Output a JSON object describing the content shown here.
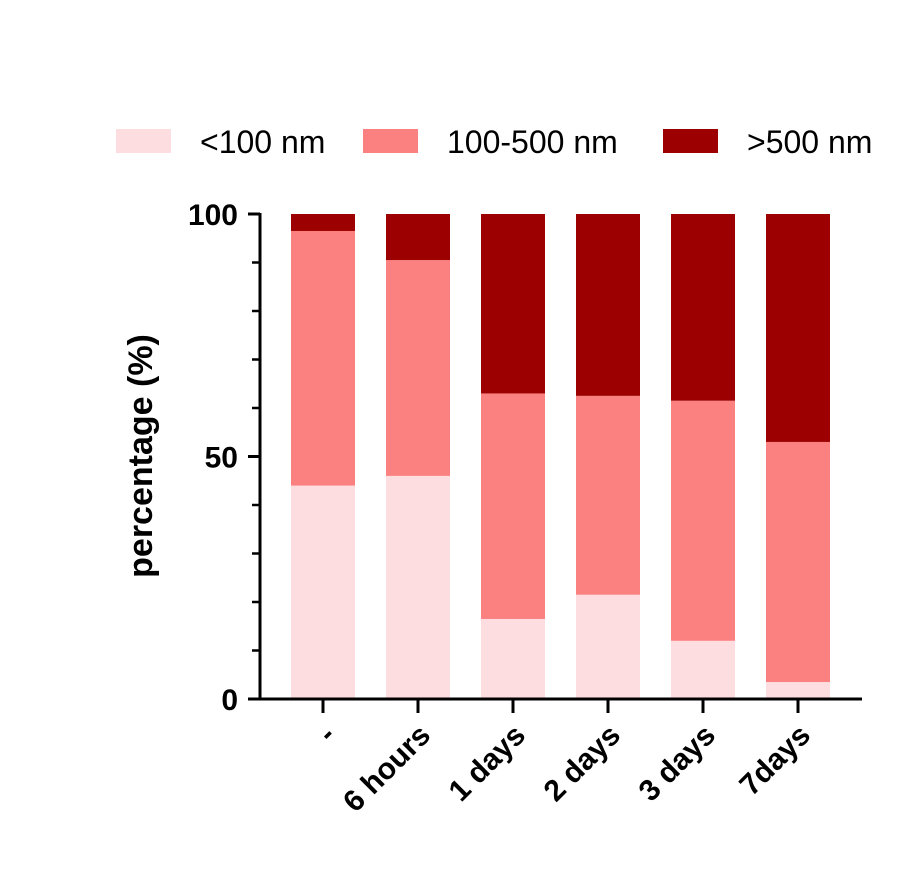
{
  "chart_data": {
    "type": "bar",
    "stacked": true,
    "categories": [
      "-",
      "6 hours",
      "1 days",
      "2 days",
      "3 days",
      "7days"
    ],
    "series": [
      {
        "name": "<100 nm",
        "color": "#fddddf",
        "values": [
          44,
          46,
          16.5,
          21.5,
          12,
          3.5
        ]
      },
      {
        "name": "100-500 nm",
        "color": "#fb8080",
        "values": [
          52.5,
          44.5,
          46.5,
          41,
          49.5,
          49.5
        ]
      },
      {
        "name": ">500 nm",
        "color": "#9c0000",
        "values": [
          3.5,
          9.5,
          37,
          37.5,
          38.5,
          47
        ]
      }
    ],
    "title": "",
    "xlabel": "",
    "ylabel": "percentage (%)",
    "ylim": [
      0,
      100
    ],
    "yticks": [
      "0",
      "50",
      "100"
    ],
    "legend_position": "top"
  }
}
